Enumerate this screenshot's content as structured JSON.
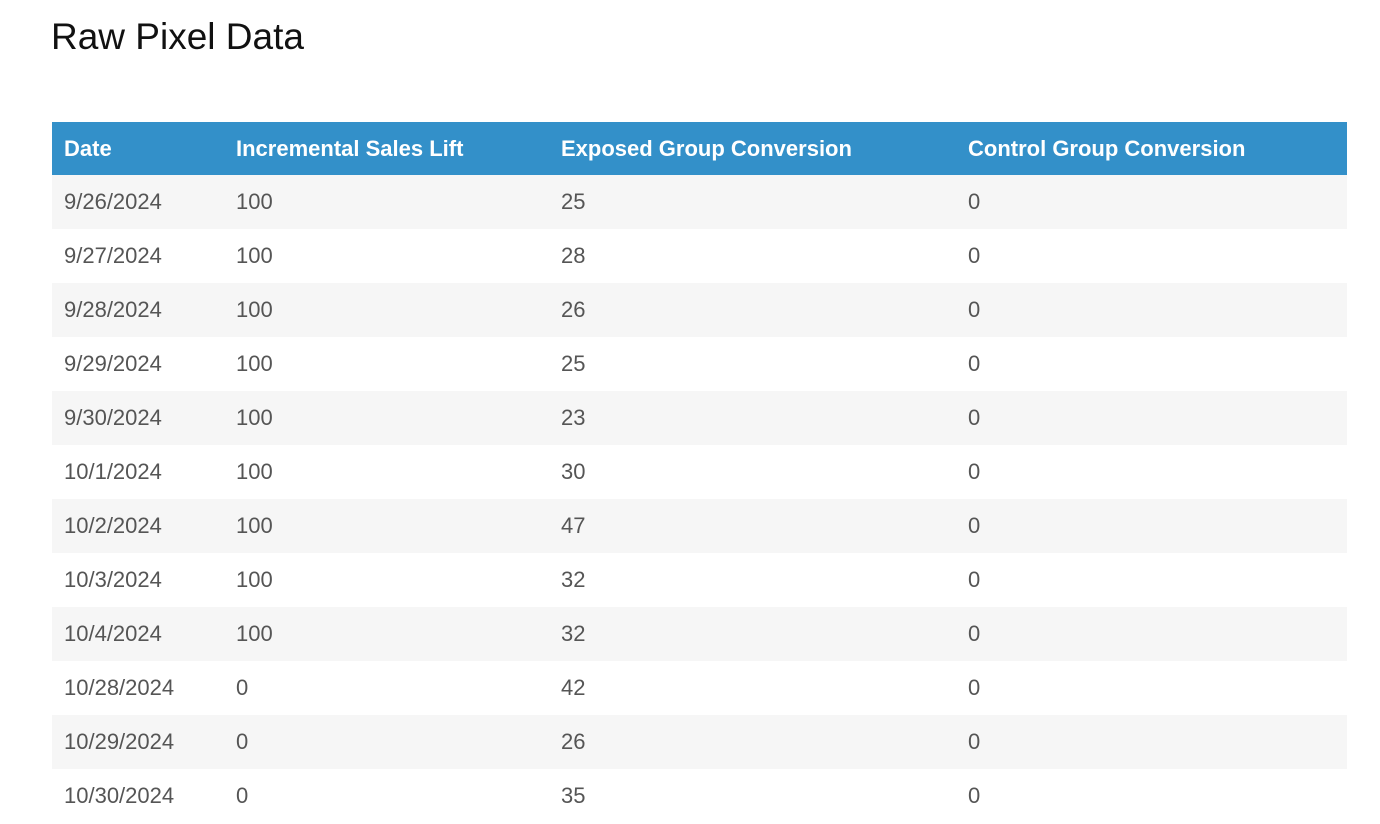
{
  "header": {
    "title": "Raw Pixel Data"
  },
  "table": {
    "columns": [
      "Date",
      "Incremental Sales Lift",
      "Exposed Group Conversion",
      "Control Group Conversion"
    ],
    "rows": [
      [
        "9/26/2024",
        100,
        25,
        0
      ],
      [
        "9/27/2024",
        100,
        28,
        0
      ],
      [
        "9/28/2024",
        100,
        26,
        0
      ],
      [
        "9/29/2024",
        100,
        25,
        0
      ],
      [
        "9/30/2024",
        100,
        23,
        0
      ],
      [
        "10/1/2024",
        100,
        30,
        0
      ],
      [
        "10/2/2024",
        100,
        47,
        0
      ],
      [
        "10/3/2024",
        100,
        32,
        0
      ],
      [
        "10/4/2024",
        100,
        32,
        0
      ],
      [
        "10/28/2024",
        0,
        42,
        0
      ],
      [
        "10/29/2024",
        0,
        26,
        0
      ],
      [
        "10/30/2024",
        0,
        35,
        0
      ]
    ]
  }
}
